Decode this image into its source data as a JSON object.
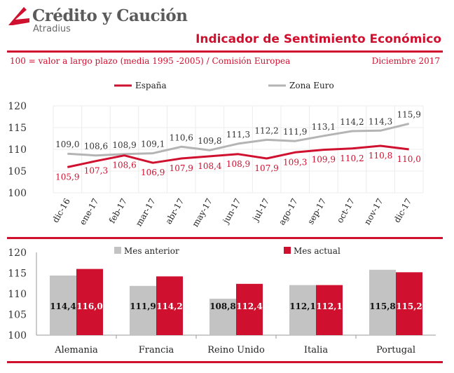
{
  "header": {
    "brand_name": "Crédito y Caución",
    "brand_sub": "Atradius",
    "title": "Indicador de Sentimiento Económico",
    "subtitle": "100 = valor a largo plazo (media 1995 -2005) / Comisión Europea",
    "date": "Diciembre 2017"
  },
  "colors": {
    "accent": "#d0102f",
    "gray_line": "#b4b4b4",
    "gray_bar": "#c3c3c3",
    "grid": "#e3e3e3"
  },
  "chart_data": [
    {
      "type": "line",
      "categories": [
        "dic-16",
        "ene-17",
        "feb-17",
        "mar-17",
        "abr-17",
        "may-17",
        "jun-17",
        "jul-17",
        "ago-17",
        "sep-17",
        "oct-17",
        "nov-17",
        "dic-17"
      ],
      "series": [
        {
          "name": "España",
          "color": "#d0102f",
          "values": [
            105.9,
            107.3,
            108.6,
            106.9,
            107.9,
            108.4,
            108.9,
            107.9,
            109.3,
            109.9,
            110.2,
            110.8,
            110.0
          ],
          "labels": [
            "105,9",
            "107,3",
            "108,6",
            "106,9",
            "107,9",
            "108,4",
            "108,9",
            "107,9",
            "109,3",
            "109,9",
            "110,2",
            "110,8",
            "110,0"
          ]
        },
        {
          "name": "Zona Euro",
          "color": "#b4b4b4",
          "values": [
            109.0,
            108.6,
            108.9,
            109.1,
            110.6,
            109.8,
            111.3,
            112.2,
            111.9,
            113.1,
            114.2,
            114.3,
            115.9
          ],
          "labels": [
            "109,0",
            "108,6",
            "108,9",
            "109,1",
            "110,6",
            "109,8",
            "111,3",
            "112,2",
            "111,9",
            "113,1",
            "114,2",
            "114,3",
            "115,9"
          ]
        }
      ],
      "yticks": [
        "100",
        "105",
        "110",
        "115",
        "120"
      ],
      "ylim": [
        100,
        120
      ],
      "grid": true,
      "legend": "top"
    },
    {
      "type": "bar",
      "categories": [
        "Alemania",
        "Francia",
        "Reino Unido",
        "Italia",
        "Portugal"
      ],
      "series": [
        {
          "name": "Mes anterior",
          "color": "#c3c3c3",
          "values": [
            114.4,
            111.9,
            108.8,
            112.1,
            115.8
          ],
          "labels": [
            "114,4",
            "111,9",
            "108,8",
            "112,1",
            "115,8"
          ]
        },
        {
          "name": "Mes actual",
          "color": "#d0102f",
          "values": [
            116.0,
            114.2,
            112.4,
            112.1,
            115.2
          ],
          "labels": [
            "116,0",
            "114,2",
            "112,4",
            "112,1",
            "115,2"
          ]
        }
      ],
      "yticks": [
        "100",
        "105",
        "110",
        "115",
        "120"
      ],
      "ylim": [
        100,
        120
      ],
      "grid": false,
      "legend": "top"
    }
  ]
}
